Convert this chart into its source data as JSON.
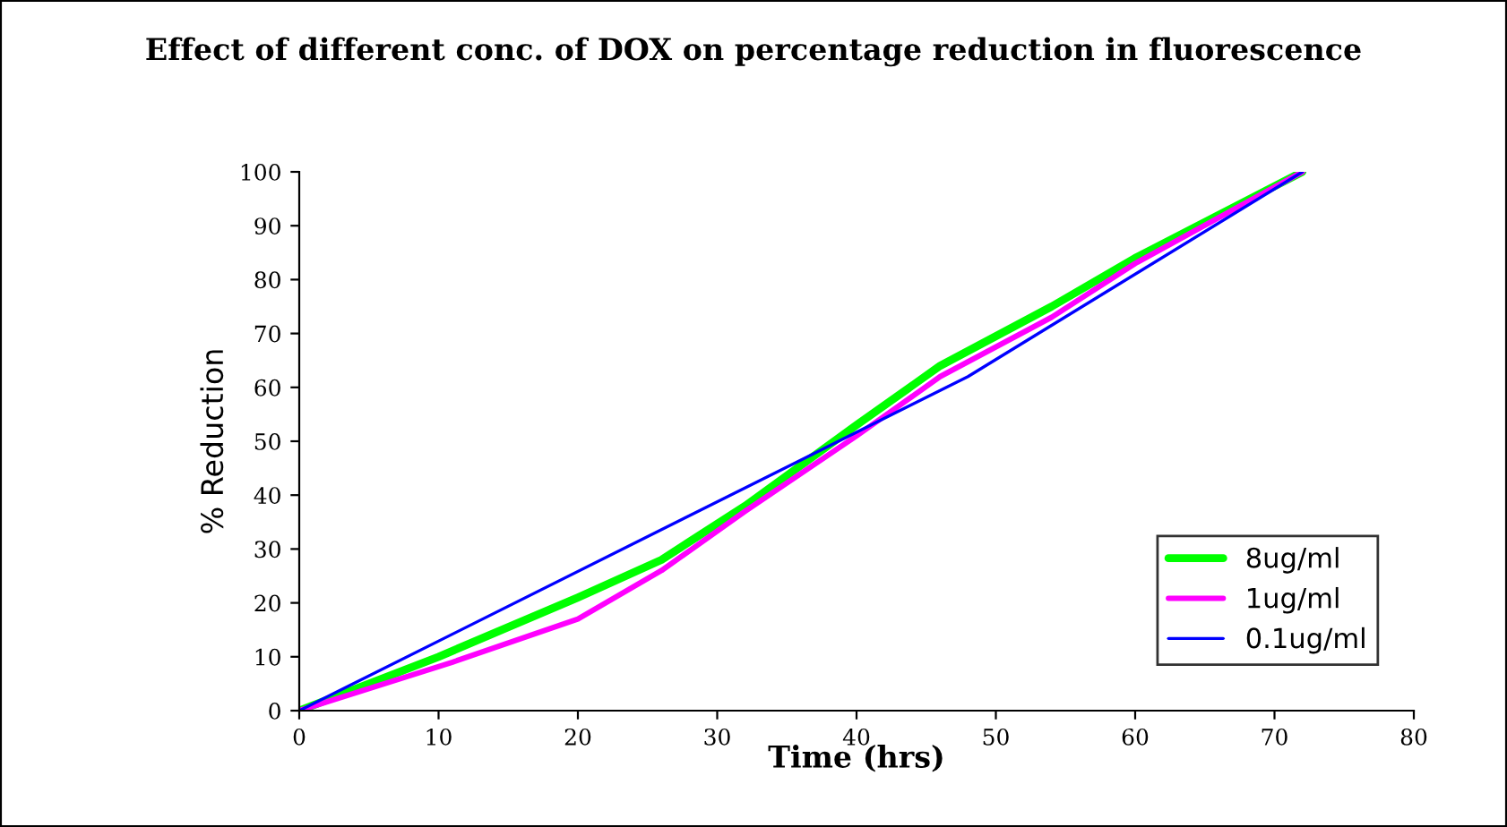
{
  "chart_data": {
    "type": "line",
    "title": "Effect of different conc. of DOX on percentage reduction in fluorescence",
    "xlabel": "Time (hrs)",
    "ylabel": "% Reduction",
    "series": [
      {
        "name": "8ug/ml",
        "color": "#00ff00",
        "x": [
          0,
          10,
          20,
          26,
          32,
          40,
          46,
          54,
          60,
          72
        ],
        "values": [
          0,
          10,
          21,
          28,
          38,
          53,
          64,
          75,
          84,
          100
        ]
      },
      {
        "name": "1ug/ml",
        "color": "#ff00ff",
        "x": [
          0,
          11,
          20,
          26,
          32,
          40,
          46,
          54,
          60,
          72
        ],
        "values": [
          0,
          9,
          17,
          26,
          37,
          51,
          62,
          73,
          83,
          100
        ]
      },
      {
        "name": "0.1ug/ml",
        "color": "#0000ff",
        "x": [
          0,
          48,
          72
        ],
        "values": [
          0,
          62,
          100
        ]
      }
    ],
    "xlim": [
      0,
      80
    ],
    "xticks": [
      0,
      10,
      20,
      30,
      40,
      50,
      60,
      70,
      80
    ],
    "ylim": [
      0,
      100
    ],
    "yticks": [
      0,
      10,
      20,
      30,
      40,
      50,
      60,
      70,
      80,
      90,
      100
    ],
    "grid": false,
    "legend": "bottom right",
    "marker": "none",
    "line_style": "solid"
  }
}
